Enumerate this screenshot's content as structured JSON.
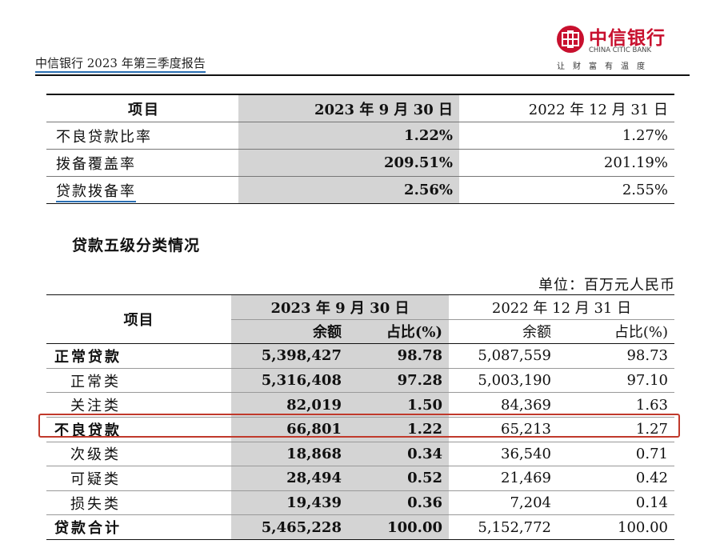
{
  "header": {
    "report_title": "中信银行 2023 年第三季度报告"
  },
  "logo": {
    "cn": "中信银行",
    "en": "CHINA CITIC BANK",
    "slogan": "让财富有温度",
    "color": "#c8102e"
  },
  "table1": {
    "headers": [
      "项目",
      "2023 年 9 月 30 日",
      "2022 年 12 月 31 日"
    ],
    "rows": [
      {
        "label": "不良贷款比率",
        "v2023": "1.22%",
        "v2022": "1.27%"
      },
      {
        "label": "拨备覆盖率",
        "v2023": "209.51%",
        "v2022": "201.19%"
      },
      {
        "label": "贷款拨备率",
        "v2023": "2.56%",
        "v2022": "2.55%"
      }
    ]
  },
  "section_title": "贷款五级分类情况",
  "unit": "单位：百万元人民币",
  "table2": {
    "item_header": "项目",
    "date2023": "2023 年 9 月 30 日",
    "date2022": "2022 年 12 月 31 日",
    "sub_amount": "余额",
    "sub_ratio": "占比(%)",
    "rows": [
      {
        "label": "正常贷款",
        "a2023": "5,398,427",
        "r2023": "98.78",
        "a2022": "5,087,559",
        "r2022": "98.73"
      },
      {
        "label": "正常类",
        "a2023": "5,316,408",
        "r2023": "97.28",
        "a2022": "5,003,190",
        "r2022": "97.10"
      },
      {
        "label": "关注类",
        "a2023": "82,019",
        "r2023": "1.50",
        "a2022": "84,369",
        "r2022": "1.63"
      },
      {
        "label": "不良贷款",
        "a2023": "66,801",
        "r2023": "1.22",
        "a2022": "65,213",
        "r2022": "1.27"
      },
      {
        "label": "次级类",
        "a2023": "18,868",
        "r2023": "0.34",
        "a2022": "36,540",
        "r2022": "0.71"
      },
      {
        "label": "可疑类",
        "a2023": "28,494",
        "r2023": "0.52",
        "a2022": "21,469",
        "r2022": "0.42"
      },
      {
        "label": "损失类",
        "a2023": "19,439",
        "r2023": "0.36",
        "a2022": "7,204",
        "r2022": "0.14"
      },
      {
        "label": "贷款合计",
        "a2023": "5,465,228",
        "r2023": "100.00",
        "a2022": "5,152,772",
        "r2022": "100.00"
      }
    ]
  },
  "colors": {
    "accent_blue": "#2a6fb3",
    "highlight_red": "#c0392b",
    "shade_gray": "#d4d4d4"
  }
}
